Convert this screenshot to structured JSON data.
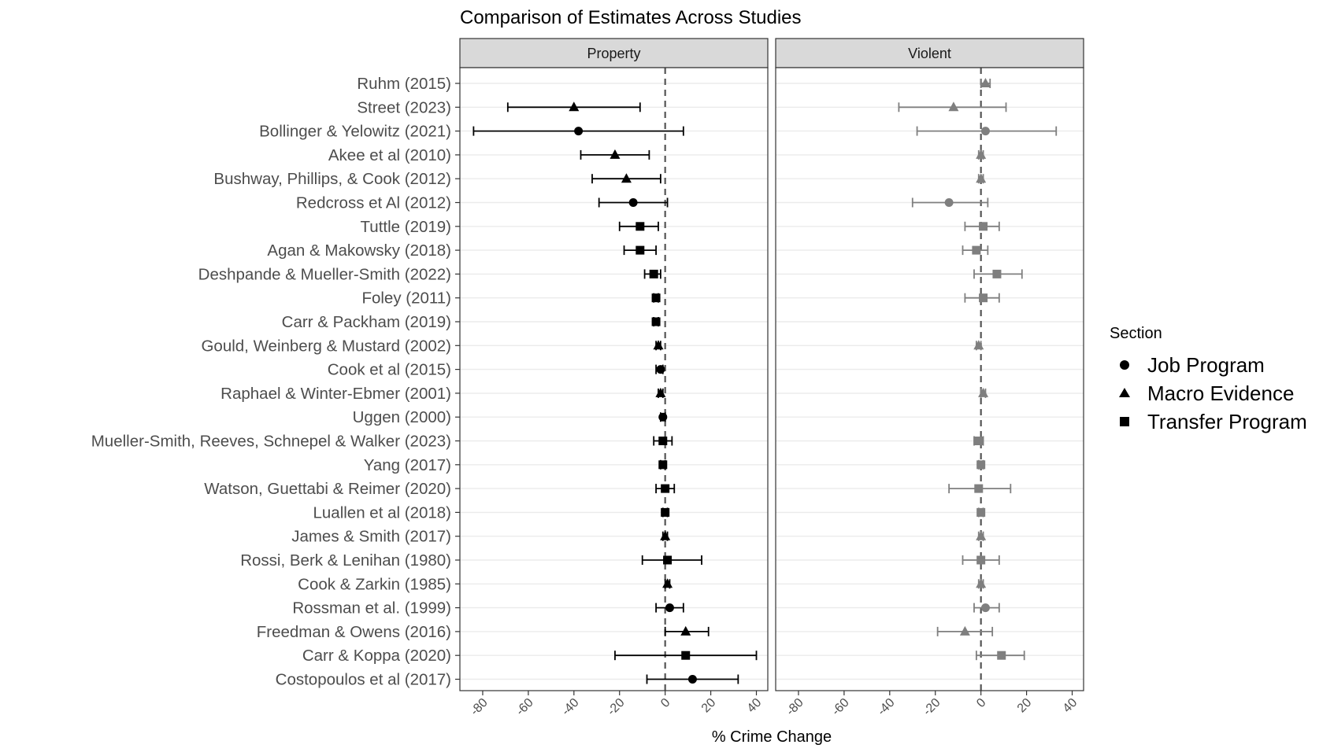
{
  "chart_data": {
    "type": "scatter",
    "title": "Comparison of Estimates Across Studies",
    "xlabel": "% Crime Change",
    "ylabel": "",
    "facets": [
      "Property",
      "Violent"
    ],
    "xlim": [
      -90,
      45
    ],
    "x_ticks": [
      -80,
      -60,
      -40,
      -20,
      0,
      20,
      40
    ],
    "reference_line": 0,
    "legend": {
      "title": "Section",
      "position": "right",
      "entries": [
        {
          "label": "Job Program",
          "shape": "circle"
        },
        {
          "label": "Macro Evidence",
          "shape": "triangle"
        },
        {
          "label": "Transfer Program",
          "shape": "square"
        }
      ]
    },
    "colors": {
      "property": "#000000",
      "violent": "#7f7f7f",
      "strip": "#d9d9d9",
      "grid": "#ebebeb",
      "panel_border": "#333333"
    },
    "studies": [
      {
        "label": "Ruhm (2015)",
        "section": "Macro Evidence",
        "property": null,
        "violent": {
          "est": 2,
          "lo": 0,
          "hi": 4
        }
      },
      {
        "label": "Street (2023)",
        "section": "Macro Evidence",
        "property": {
          "est": -40,
          "lo": -69,
          "hi": -11
        },
        "violent": {
          "est": -12,
          "lo": -36,
          "hi": 11
        }
      },
      {
        "label": "Bollinger & Yelowitz (2021)",
        "section": "Job Program",
        "property": {
          "est": -38,
          "lo": -84,
          "hi": 8
        },
        "violent": {
          "est": 2,
          "lo": -28,
          "hi": 33
        }
      },
      {
        "label": "Akee et al (2010)",
        "section": "Macro Evidence",
        "property": {
          "est": -22,
          "lo": -37,
          "hi": -7
        },
        "violent": {
          "est": 0,
          "lo": -1,
          "hi": 1
        }
      },
      {
        "label": "Bushway, Phillips, & Cook (2012)",
        "section": "Macro Evidence",
        "property": {
          "est": -17,
          "lo": -32,
          "hi": -2
        },
        "violent": {
          "est": 0,
          "lo": -1,
          "hi": 1
        }
      },
      {
        "label": "Redcross et Al (2012)",
        "section": "Job Program",
        "property": {
          "est": -14,
          "lo": -29,
          "hi": 1
        },
        "violent": {
          "est": -14,
          "lo": -30,
          "hi": 3
        }
      },
      {
        "label": "Tuttle (2019)",
        "section": "Transfer Program",
        "property": {
          "est": -11,
          "lo": -20,
          "hi": -3
        },
        "violent": {
          "est": 1,
          "lo": -7,
          "hi": 8
        }
      },
      {
        "label": "Agan & Makowsky (2018)",
        "section": "Transfer Program",
        "property": {
          "est": -11,
          "lo": -18,
          "hi": -4
        },
        "violent": {
          "est": -2,
          "lo": -8,
          "hi": 3
        }
      },
      {
        "label": "Deshpande & Mueller-Smith (2022)",
        "section": "Transfer Program",
        "property": {
          "est": -5,
          "lo": -9,
          "hi": -2
        },
        "violent": {
          "est": 7,
          "lo": -3,
          "hi": 18
        }
      },
      {
        "label": "Foley (2011)",
        "section": "Transfer Program",
        "property": {
          "est": -4,
          "lo": -5,
          "hi": -3
        },
        "violent": {
          "est": 1,
          "lo": -7,
          "hi": 8
        }
      },
      {
        "label": "Carr & Packham (2019)",
        "section": "Transfer Program",
        "property": {
          "est": -4,
          "lo": -5,
          "hi": -3
        },
        "violent": null
      },
      {
        "label": "Gould, Weinberg & Mustard (2002)",
        "section": "Macro Evidence",
        "property": {
          "est": -3,
          "lo": -4,
          "hi": -2
        },
        "violent": {
          "est": -1,
          "lo": -2,
          "hi": 0
        }
      },
      {
        "label": "Cook et al (2015)",
        "section": "Job Program",
        "property": {
          "est": -2,
          "lo": -4,
          "hi": -1
        },
        "violent": null
      },
      {
        "label": "Raphael & Winter-Ebmer (2001)",
        "section": "Macro Evidence",
        "property": {
          "est": -2,
          "lo": -3,
          "hi": -1
        },
        "violent": {
          "est": 1,
          "lo": 0,
          "hi": 2
        }
      },
      {
        "label": "Uggen (2000)",
        "section": "Job Program",
        "property": {
          "est": -1,
          "lo": -2,
          "hi": 0
        },
        "violent": null
      },
      {
        "label": "Mueller-Smith, Reeves, Schnepel & Walker (2023)",
        "section": "Transfer Program",
        "property": {
          "est": -1,
          "lo": -5,
          "hi": 3
        },
        "violent": {
          "est": -1,
          "lo": -3,
          "hi": 1
        }
      },
      {
        "label": "Yang (2017)",
        "section": "Transfer Program",
        "property": {
          "est": -1,
          "lo": -2,
          "hi": 0
        },
        "violent": {
          "est": 0,
          "lo": -1,
          "hi": 1
        }
      },
      {
        "label": "Watson, Guettabi & Reimer (2020)",
        "section": "Transfer Program",
        "property": {
          "est": 0,
          "lo": -4,
          "hi": 4
        },
        "violent": {
          "est": -1,
          "lo": -14,
          "hi": 13
        }
      },
      {
        "label": "Luallen et al (2018)",
        "section": "Transfer Program",
        "property": {
          "est": 0,
          "lo": -1,
          "hi": 1
        },
        "violent": {
          "est": 0,
          "lo": -1,
          "hi": 1
        }
      },
      {
        "label": "James & Smith (2017)",
        "section": "Macro Evidence",
        "property": {
          "est": 0,
          "lo": -1,
          "hi": 1
        },
        "violent": {
          "est": 0,
          "lo": -1,
          "hi": 1
        }
      },
      {
        "label": "Rossi, Berk & Lenihan (1980)",
        "section": "Transfer Program",
        "property": {
          "est": 1,
          "lo": -10,
          "hi": 16
        },
        "violent": {
          "est": 0,
          "lo": -8,
          "hi": 8
        }
      },
      {
        "label": "Cook &  Zarkin  (1985)",
        "section": "Macro Evidence",
        "property": {
          "est": 1,
          "lo": 0,
          "hi": 2
        },
        "violent": {
          "est": 0,
          "lo": -1,
          "hi": 1
        }
      },
      {
        "label": "Rossman et al. (1999)",
        "section": "Job Program",
        "property": {
          "est": 2,
          "lo": -4,
          "hi": 8
        },
        "violent": {
          "est": 2,
          "lo": -3,
          "hi": 8
        }
      },
      {
        "label": "Freedman & Owens (2016)",
        "section": "Macro Evidence",
        "property": {
          "est": 9,
          "lo": 0,
          "hi": 19
        },
        "violent": {
          "est": -7,
          "lo": -19,
          "hi": 5
        }
      },
      {
        "label": "Carr & Koppa (2020)",
        "section": "Transfer Program",
        "property": {
          "est": 9,
          "lo": -22,
          "hi": 40
        },
        "violent": {
          "est": 9,
          "lo": -2,
          "hi": 19
        }
      },
      {
        "label": "Costopoulos et al (2017)",
        "section": "Job Program",
        "property": {
          "est": 12,
          "lo": -8,
          "hi": 32
        },
        "violent": null
      }
    ]
  }
}
